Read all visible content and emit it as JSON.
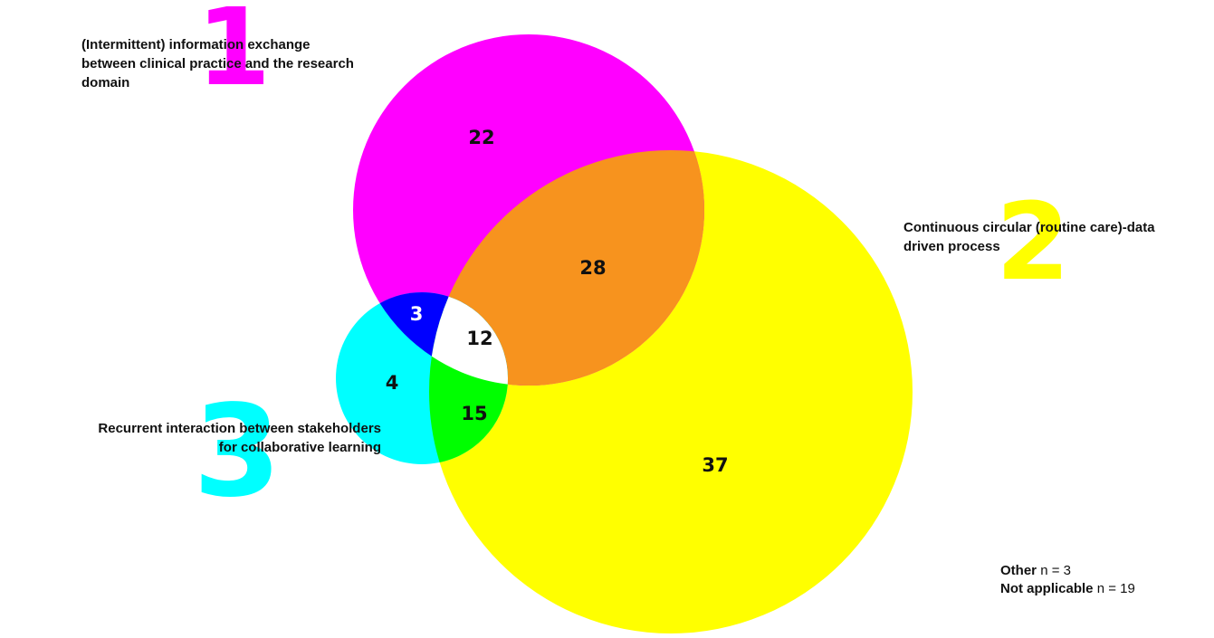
{
  "sets": [
    {
      "id": "1",
      "label_lines": [
        "(Intermittent) information exchange",
        "between clinical practice and the  research",
        "domain"
      ],
      "color": "#ff00ff"
    },
    {
      "id": "2",
      "label_lines": [
        "Continuous circular (routine care)-data",
        "driven process"
      ],
      "color": "#ffff00"
    },
    {
      "id": "3",
      "label_lines": [
        "Recurrent interaction between stakeholders",
        "for collaborative learning"
      ],
      "color": "#00ffff"
    }
  ],
  "regions": {
    "only_1": {
      "value": "22",
      "color": "#ff00ff"
    },
    "only_2": {
      "value": "37",
      "color": "#ffff00"
    },
    "only_3": {
      "value": "4",
      "color": "#00ffff"
    },
    "one_and_two": {
      "value": "28",
      "color": "#f7931e"
    },
    "one_and_three": {
      "value": "3",
      "color": "#0000ff"
    },
    "two_and_three": {
      "value": "15",
      "color": "#00ff00"
    },
    "all_three": {
      "value": "12",
      "color": "#ffffff"
    }
  },
  "footer": {
    "other_label": "Other",
    "other_value": "n = 3",
    "na_label": "Not applicable",
    "na_value": "n = 19"
  }
}
